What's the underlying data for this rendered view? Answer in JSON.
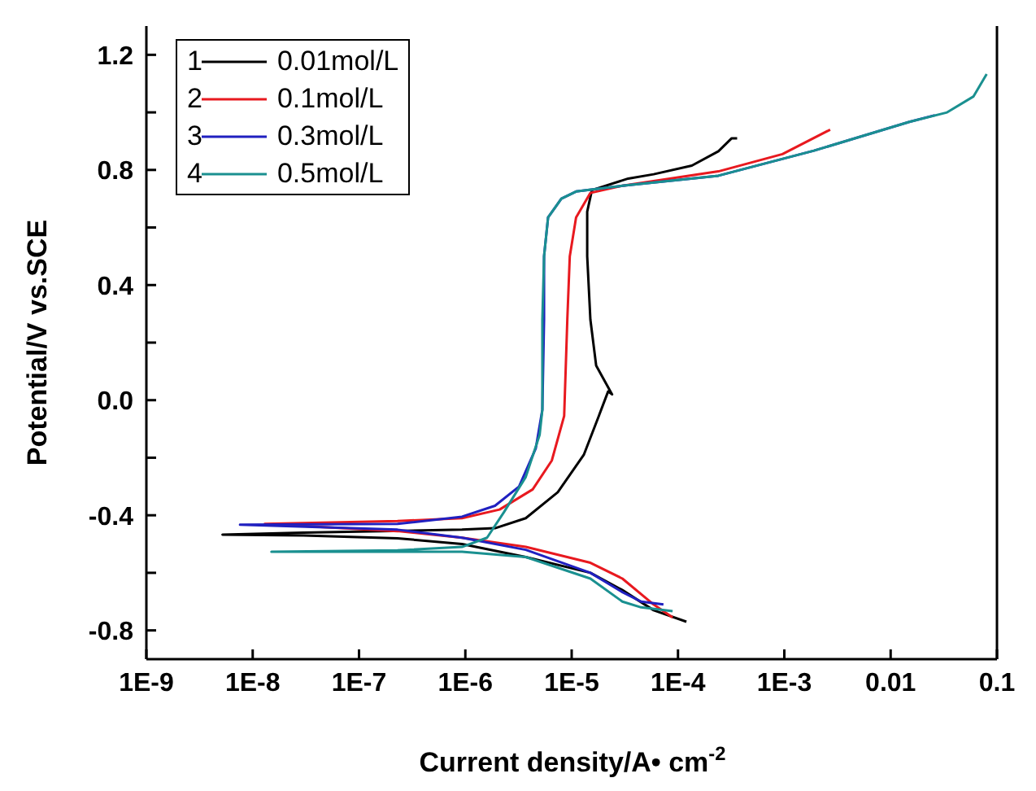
{
  "chart_data": {
    "type": "line",
    "xlabel": "Current density/A• cm$^{-2}$",
    "ylabel": "Potential/V vs.SCE",
    "log": "x",
    "annotations": [
      "1",
      "2",
      "3",
      "4"
    ],
    "legend": "top left",
    "grid": false,
    "marker": "none",
    "line_style": "solid",
    "xlim": [
      1e-09,
      0.1
    ],
    "xticks": [
      {
        "value": 1e-09,
        "label": "1E-9"
      },
      {
        "value": 1e-08,
        "label": "1E-8"
      },
      {
        "value": 1e-07,
        "label": "1E-7"
      },
      {
        "value": 1e-06,
        "label": "1E-6"
      },
      {
        "value": 1e-05,
        "label": "1E-5"
      },
      {
        "value": 0.0001,
        "label": "1E-4"
      },
      {
        "value": 0.001,
        "label": "1E-3"
      },
      0.01,
      0.1
    ],
    "ylim": [
      -0.9,
      1.3
    ],
    "yticks": [
      {
        "value": -0.8,
        "label": "-0.8"
      },
      {
        "value": -0.6,
        "label": null
      },
      {
        "value": -0.4,
        "label": "-0.4"
      },
      {
        "value": -0.2,
        "label": null
      },
      {
        "value": 0,
        "label": "0.0"
      },
      {
        "value": 0.2,
        "label": null
      },
      {
        "value": 0.4,
        "label": "0.4"
      },
      {
        "value": 0.6,
        "label": null
      },
      {
        "value": 0.8,
        "label": "0.8"
      },
      {
        "value": 1.0,
        "label": null
      },
      {
        "value": 1.2,
        "label": "1.2"
      }
    ],
    "series": [
      {
        "name": "0.01mol/L",
        "color": "#000000",
        "x": [
          0.00012,
          5.9e-05,
          3e-05,
          1.5e-05,
          3.7e-06,
          9.3e-07,
          2.3e-07,
          3e-08,
          5.2e-09,
          3e-08,
          9.3e-07,
          1.9e-06,
          3.7e-06,
          7.4e-06,
          1.3e-05,
          1.8e-05,
          2.2e-05,
          2.4e-05,
          1.7e-05,
          1.5e-05,
          1.4e-05,
          1.4e-05,
          1.55e-05,
          3.4e-05,
          5.9e-05,
          0.000135,
          0.00024,
          0.00032,
          0.00036
        ],
        "values": [
          -0.77,
          -0.73,
          -0.66,
          -0.6,
          -0.545,
          -0.5,
          -0.48,
          -0.47,
          -0.467,
          -0.46,
          -0.45,
          -0.445,
          -0.41,
          -0.32,
          -0.19,
          -0.055,
          0.03,
          0.02,
          0.12,
          0.28,
          0.5,
          0.655,
          0.73,
          0.77,
          0.785,
          0.815,
          0.865,
          0.91,
          0.91
        ]
      },
      {
        "name": "0.1mol/L",
        "color": "#e8191f",
        "x": [
          8.9e-05,
          5.9e-05,
          3e-05,
          1.5e-05,
          3.7e-06,
          9.3e-07,
          2.3e-07,
          1.3e-08,
          2.3e-07,
          9.3e-07,
          2.1e-06,
          4.3e-06,
          6.5e-06,
          8.5e-06,
          9.1e-06,
          9.6e-06,
          1.1e-05,
          1.5e-05,
          3e-05,
          0.00024,
          0.00096,
          0.0027
        ],
        "values": [
          -0.755,
          -0.71,
          -0.62,
          -0.565,
          -0.51,
          -0.478,
          -0.455,
          -0.43,
          -0.42,
          -0.41,
          -0.38,
          -0.31,
          -0.21,
          -0.055,
          0.28,
          0.5,
          0.635,
          0.72,
          0.745,
          0.795,
          0.855,
          0.94
        ]
      },
      {
        "name": "0.3mol/L",
        "color": "#2020c0",
        "x": [
          7.3e-05,
          4.5e-05,
          3e-05,
          1.5e-05,
          3.7e-06,
          9.3e-07,
          2.3e-07,
          7.6e-09,
          2.3e-07,
          9.3e-07,
          1.9e-06,
          3.2e-06,
          4.6e-06,
          5.3e-06,
          5.5e-06,
          5.5e-06,
          6e-06,
          8e-06,
          1.1e-05,
          3e-05,
          0.00024,
          0.0019,
          0.015,
          0.026
        ],
        "values": [
          -0.71,
          -0.7,
          -0.667,
          -0.6,
          -0.52,
          -0.478,
          -0.45,
          -0.433,
          -0.43,
          -0.405,
          -0.367,
          -0.3,
          -0.167,
          -0.033,
          0.28,
          0.5,
          0.635,
          0.7,
          0.725,
          0.745,
          0.78,
          0.867,
          0.967,
          0.99
        ]
      },
      {
        "name": "0.5mol/L",
        "color": "#1a9090",
        "x": [
          8.9e-05,
          4.5e-05,
          3e-05,
          1.5e-05,
          3.7e-06,
          9.3e-07,
          2.3e-07,
          1.5e-08,
          2.3e-07,
          9.3e-07,
          1.6e-06,
          2.3e-06,
          3.7e-06,
          5e-06,
          5.3e-06,
          5.3e-06,
          5.5e-06,
          6e-06,
          8e-06,
          1.1e-05,
          3e-05,
          0.00024,
          0.0019,
          0.015,
          0.034,
          0.06,
          0.08
        ],
        "values": [
          -0.733,
          -0.72,
          -0.7,
          -0.62,
          -0.545,
          -0.527,
          -0.527,
          -0.527,
          -0.522,
          -0.51,
          -0.478,
          -0.39,
          -0.267,
          -0.12,
          -0.033,
          0.28,
          0.5,
          0.635,
          0.7,
          0.725,
          0.745,
          0.78,
          0.867,
          0.967,
          1.0,
          1.055,
          1.133
        ]
      }
    ]
  }
}
